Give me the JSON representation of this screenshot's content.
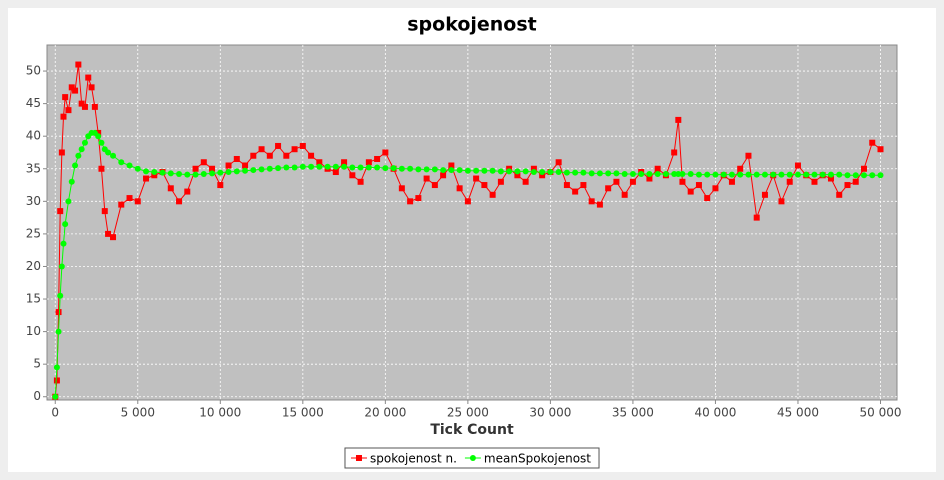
{
  "chart_data": {
    "type": "line",
    "title": "spokojenost",
    "x_label": "Tick Count",
    "x": [
      0,
      100,
      200,
      300,
      400,
      500,
      600,
      800,
      1000,
      1200,
      1400,
      1600,
      1800,
      2000,
      2200,
      2400,
      2600,
      2800,
      3000,
      3200,
      3500,
      4000,
      4500,
      5000,
      5500,
      6000,
      6500,
      7000,
      7500,
      8000,
      8500,
      9000,
      9500,
      10000,
      10500,
      11000,
      11500,
      12000,
      12500,
      13000,
      13500,
      14000,
      14500,
      15000,
      15500,
      16000,
      16500,
      17000,
      17500,
      18000,
      18500,
      19000,
      19500,
      20000,
      20500,
      21000,
      21500,
      22000,
      22500,
      23000,
      23500,
      24000,
      24500,
      25000,
      25500,
      26000,
      26500,
      27000,
      27500,
      28000,
      28500,
      29000,
      29500,
      30000,
      30500,
      31000,
      31500,
      32000,
      32500,
      33000,
      33500,
      34000,
      34500,
      35000,
      35500,
      36000,
      36500,
      37000,
      37500,
      37750,
      38000,
      38500,
      39000,
      39500,
      40000,
      40500,
      41000,
      41500,
      42000,
      42500,
      43000,
      43500,
      44000,
      44500,
      45000,
      45500,
      46000,
      46500,
      47000,
      47500,
      48000,
      48500,
      49000,
      49500,
      50000
    ],
    "series": [
      {
        "name": "spokojenost n.",
        "color": "#ff0000",
        "marker": "square",
        "values": [
          0,
          2.5,
          13,
          28.5,
          37.5,
          43,
          46,
          44,
          47.5,
          47,
          51,
          45,
          44.5,
          49,
          47.5,
          44.5,
          40.5,
          35,
          28.5,
          25,
          24.5,
          29.5,
          30.5,
          30,
          33.5,
          34,
          34.5,
          32,
          30,
          31.5,
          35,
          36,
          35,
          32.5,
          35.5,
          36.5,
          35.5,
          37,
          38,
          37,
          38.5,
          37,
          38,
          38.5,
          37,
          36,
          35,
          34.5,
          36,
          34,
          33,
          36,
          36.5,
          37.5,
          35,
          32,
          30,
          30.5,
          33.5,
          32.5,
          34,
          35.5,
          32,
          30,
          33.5,
          32.5,
          31,
          33,
          35,
          34,
          33,
          35,
          34,
          34.5,
          36,
          32.5,
          31.5,
          32.5,
          30,
          29.5,
          32,
          33,
          31,
          33,
          34.5,
          33.5,
          35,
          34,
          37.5,
          42.5,
          33,
          31.5,
          32.5,
          30.5,
          32,
          34,
          33,
          35,
          37,
          27.5,
          31,
          34,
          30,
          33,
          35.5,
          34,
          33,
          34,
          33.5,
          31,
          32.5,
          33,
          35,
          39,
          38
        ]
      },
      {
        "name": "meanSpokojenost",
        "color": "#00ff00",
        "marker": "circle",
        "values": [
          0,
          4.5,
          10,
          15.5,
          20,
          23.5,
          26.5,
          30,
          33,
          35.5,
          37,
          38,
          39,
          40,
          40.5,
          40.5,
          40,
          39,
          38,
          37.5,
          37,
          36,
          35.5,
          35,
          34.6,
          34.5,
          34.4,
          34.3,
          34.2,
          34.1,
          34.1,
          34.2,
          34.3,
          34.4,
          34.5,
          34.6,
          34.7,
          34.8,
          34.9,
          35,
          35.1,
          35.2,
          35.2,
          35.3,
          35.3,
          35.3,
          35.3,
          35.3,
          35.3,
          35.2,
          35.2,
          35.2,
          35.2,
          35.1,
          35.1,
          35,
          35,
          34.9,
          34.9,
          34.9,
          34.8,
          34.8,
          34.8,
          34.7,
          34.7,
          34.7,
          34.7,
          34.6,
          34.6,
          34.6,
          34.6,
          34.5,
          34.5,
          34.5,
          34.5,
          34.4,
          34.4,
          34.4,
          34.3,
          34.3,
          34.3,
          34.3,
          34.2,
          34.2,
          34.2,
          34.2,
          34.2,
          34.2,
          34.2,
          34.2,
          34.2,
          34.2,
          34.1,
          34.1,
          34.1,
          34.1,
          34.1,
          34.1,
          34.1,
          34.1,
          34.1,
          34.1,
          34.1,
          34.1,
          34.1,
          34.1,
          34.1,
          34.1,
          34.1,
          34.1,
          34,
          34,
          34,
          34,
          34
        ]
      }
    ],
    "xlim": [
      -500,
      51000
    ],
    "ylim": [
      -0.5,
      54
    ],
    "xticks": [
      0,
      {
        "value": 5000,
        "label": "5 000"
      },
      {
        "value": 10000,
        "label": "10 000"
      },
      {
        "value": 15000,
        "label": "15 000"
      },
      {
        "value": 20000,
        "label": "20 000"
      },
      {
        "value": 25000,
        "label": "25 000"
      },
      {
        "value": 30000,
        "label": "30 000"
      },
      {
        "value": 35000,
        "label": "35 000"
      },
      {
        "value": 40000,
        "label": "40 000"
      },
      {
        "value": 45000,
        "label": "45 000"
      },
      {
        "value": 50000,
        "label": "50 000"
      }
    ],
    "yticks": [
      0,
      5,
      10,
      15,
      20,
      25,
      30,
      35,
      40,
      45,
      50
    ],
    "grid": true,
    "legend": "bottom"
  }
}
